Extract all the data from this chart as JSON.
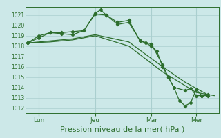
{
  "background_color": "#cce8e8",
  "grid_color": "#aacfcf",
  "line_color": "#2d6e2d",
  "marker_color": "#2d6e2d",
  "xlabel": "Pression niveau de la mer( hPa )",
  "xlabel_fontsize": 8,
  "ylim": [
    1011.5,
    1021.8
  ],
  "yticks": [
    1012,
    1013,
    1014,
    1015,
    1016,
    1017,
    1018,
    1019,
    1020,
    1021
  ],
  "xtick_labels": [
    "Lun",
    "Jeu",
    "Mar",
    "Mer"
  ],
  "xtick_positions": [
    0.5,
    3.0,
    5.5,
    7.5
  ],
  "vline_positions": [
    0.5,
    3.0,
    5.5,
    7.5
  ],
  "xlim": [
    -0.1,
    8.5
  ],
  "series1_x": [
    0.0,
    0.5,
    1.0,
    1.5,
    2.0,
    2.5,
    3.0,
    3.25,
    3.5,
    4.0,
    4.5,
    5.0,
    5.25,
    5.5,
    5.75,
    6.0,
    6.25,
    6.5,
    7.0,
    7.25,
    7.5,
    7.75,
    8.0
  ],
  "series1_y": [
    1018.3,
    1018.8,
    1019.3,
    1019.2,
    1019.1,
    1019.5,
    1021.2,
    1021.5,
    1021.0,
    1020.3,
    1020.5,
    1018.5,
    1018.3,
    1018.0,
    1017.5,
    1016.0,
    1015.0,
    1014.0,
    1013.7,
    1013.9,
    1013.2,
    1013.2,
    1013.3
  ],
  "series2_x": [
    0.0,
    1.0,
    2.0,
    3.0,
    4.5,
    6.0,
    7.0,
    8.0
  ],
  "series2_y": [
    1018.3,
    1018.5,
    1018.7,
    1019.1,
    1018.4,
    1016.0,
    1014.5,
    1013.3
  ],
  "series3_x": [
    0.0,
    1.0,
    2.0,
    3.0,
    4.5,
    6.0,
    7.5,
    8.3
  ],
  "series3_y": [
    1018.3,
    1018.4,
    1018.6,
    1019.0,
    1018.0,
    1015.5,
    1013.5,
    1013.2
  ],
  "series4_x": [
    0.0,
    0.5,
    1.0,
    1.5,
    2.0,
    2.5,
    3.0,
    3.5,
    4.0,
    4.5,
    5.0,
    5.5,
    6.0,
    6.25,
    6.5,
    6.75,
    7.0,
    7.25,
    7.5,
    7.75,
    8.0
  ],
  "series4_y": [
    1018.3,
    1019.0,
    1019.3,
    1019.3,
    1019.4,
    1019.5,
    1021.1,
    1021.0,
    1020.1,
    1020.3,
    1018.5,
    1018.2,
    1016.2,
    1015.0,
    1014.0,
    1012.7,
    1012.2,
    1012.5,
    1013.8,
    1013.2,
    1013.2
  ]
}
